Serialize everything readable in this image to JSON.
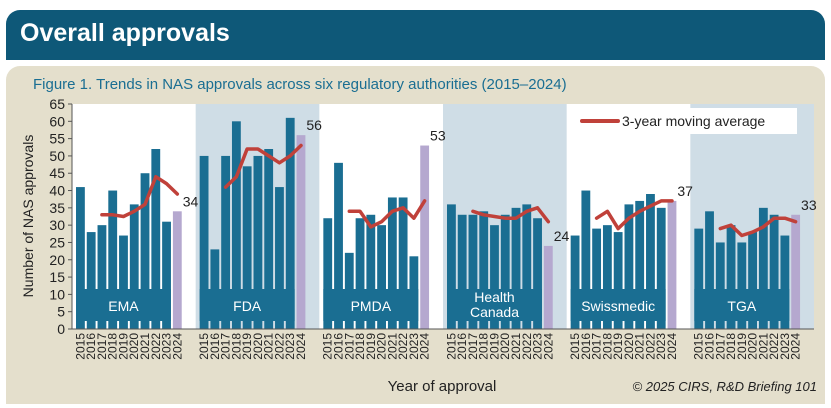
{
  "header": {
    "title": "Overall approvals"
  },
  "chart_data": {
    "type": "bar",
    "title": "Figure 1. Trends in NAS approvals across six regulatory authorities (2015–2024)",
    "xlabel": "Year of approval",
    "ylabel": "Number of NAS approvals",
    "ylim": [
      0,
      65
    ],
    "yticks": [
      0,
      5,
      10,
      15,
      20,
      25,
      30,
      35,
      40,
      45,
      50,
      55,
      60,
      65
    ],
    "years": [
      "2015",
      "2016",
      "2017",
      "2018",
      "2019",
      "2020",
      "2021",
      "2022",
      "2023",
      "2024"
    ],
    "legend": {
      "label": "3-year moving average",
      "position": "top-right"
    },
    "copyright": "© 2025 CIRS, R&D Briefing 101",
    "colors": {
      "bar": "#1a6e92",
      "latest_bar": "#b5a8cf",
      "moving_average": "#c0413a",
      "shade": "#cfdde6",
      "label_box": "#1a6e92"
    },
    "groups": [
      {
        "name": "EMA",
        "label_lines": [
          "EMA"
        ],
        "values": [
          41,
          28,
          30,
          40,
          27,
          36,
          45,
          52,
          31,
          34
        ],
        "latest_label": "34",
        "moving_average": [
          33,
          33,
          32.5,
          34,
          36,
          44,
          42,
          39
        ]
      },
      {
        "name": "FDA",
        "label_lines": [
          "FDA"
        ],
        "values": [
          50,
          23,
          50,
          60,
          47,
          50,
          52,
          41,
          61,
          56
        ],
        "latest_label": "56",
        "moving_average": [
          41,
          44,
          52,
          52,
          50,
          48,
          50,
          53
        ]
      },
      {
        "name": "PMDA",
        "label_lines": [
          "PMDA"
        ],
        "values": [
          32,
          48,
          22,
          32,
          33,
          30,
          38,
          38,
          21,
          53
        ],
        "latest_label": "53",
        "moving_average": [
          34,
          34,
          29.5,
          31,
          34,
          35,
          32,
          37
        ]
      },
      {
        "name": "Health Canada",
        "label_lines": [
          "Health",
          "Canada"
        ],
        "values": [
          36,
          33,
          33,
          34,
          30,
          33,
          35,
          36,
          32,
          24
        ],
        "latest_label": "24",
        "moving_average": [
          34,
          33,
          32.5,
          32,
          32,
          34,
          35,
          31
        ]
      },
      {
        "name": "Swissmedic",
        "label_lines": [
          "Swissmedic"
        ],
        "values": [
          27,
          40,
          29,
          30,
          28,
          36,
          37,
          39,
          35,
          37
        ],
        "latest_label": "37",
        "moving_average": [
          32,
          34,
          29,
          32,
          34,
          35.5,
          37,
          37
        ]
      },
      {
        "name": "TGA",
        "label_lines": [
          "TGA"
        ],
        "values": [
          29,
          34,
          25,
          30,
          25,
          28,
          35,
          33,
          27,
          33
        ],
        "latest_label": "33",
        "moving_average": [
          29,
          30,
          27,
          28,
          29.5,
          32,
          32,
          31
        ]
      }
    ]
  }
}
